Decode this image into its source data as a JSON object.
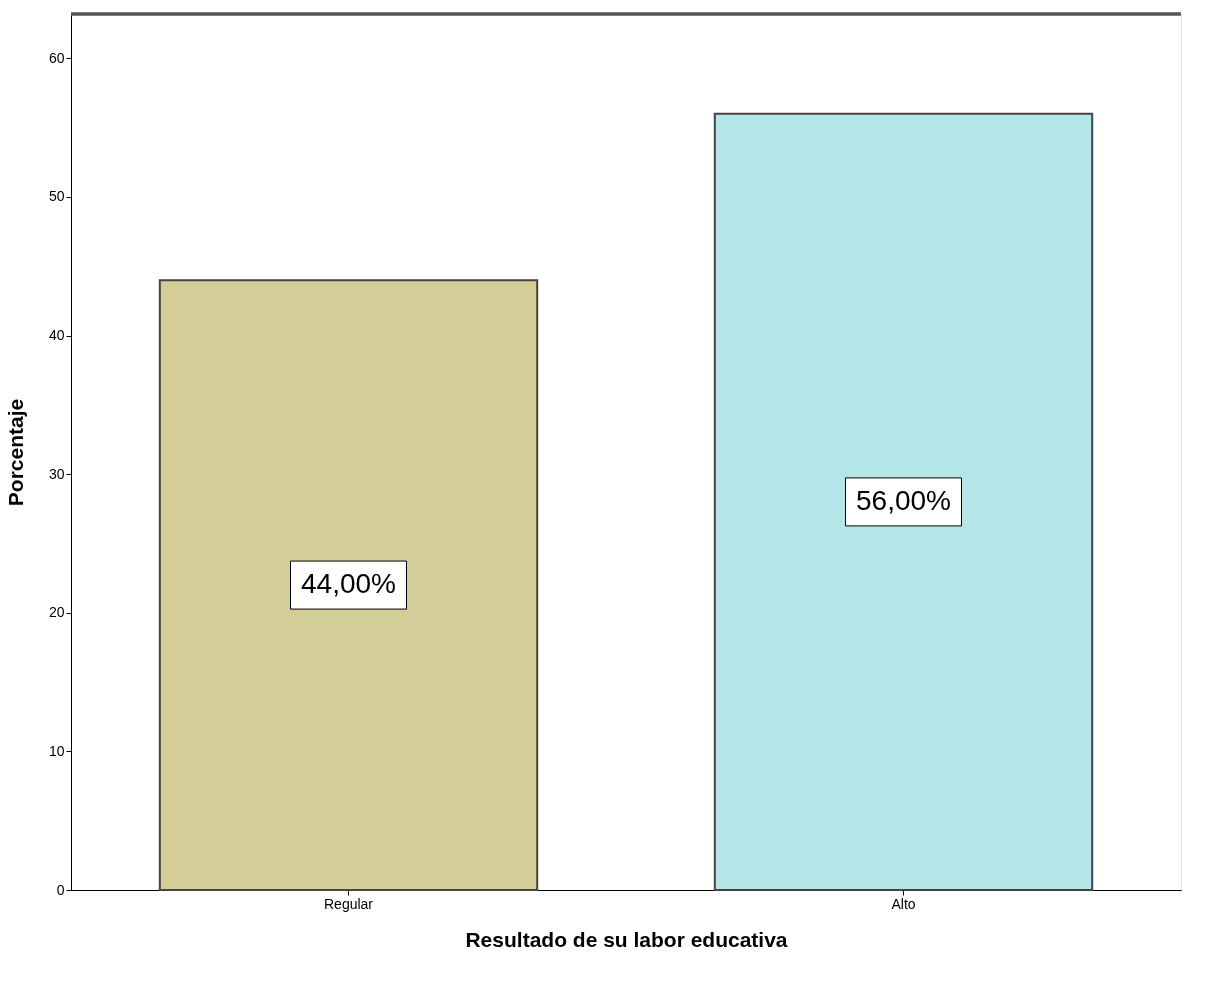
{
  "chart_data": {
    "type": "bar",
    "xlabel": "Resultado de su labor educativa",
    "ylabel": "Porcentaje",
    "categories": [
      "Regular",
      "Alto"
    ],
    "values": [
      44,
      56
    ],
    "colors": [
      "#d3cd97",
      "#b5e6e7"
    ],
    "value_labels": [
      "44,00%",
      "56,00%"
    ],
    "ylim": [
      0,
      63.2
    ],
    "yticks": [
      0,
      10,
      20,
      30,
      40,
      50,
      60
    ],
    "grid": false
  }
}
